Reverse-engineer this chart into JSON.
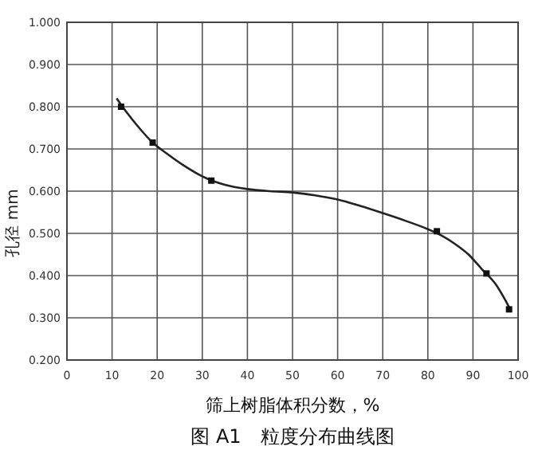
{
  "chart_data": {
    "type": "line",
    "title": "图 A1　粒度分布曲线图",
    "xlabel": "筛上树脂体积分数，%",
    "ylabel": "孔径 mm",
    "xlim": [
      0,
      100
    ],
    "xticks": [
      0,
      10,
      20,
      30,
      40,
      50,
      60,
      70,
      80,
      90,
      100
    ],
    "ylim": [
      0.2,
      1.0
    ],
    "yticks": [
      {
        "value": 0.2,
        "label": "0.200"
      },
      {
        "value": 0.3,
        "label": "0.300"
      },
      {
        "value": 0.4,
        "label": "0.400"
      },
      {
        "value": 0.5,
        "label": "0.500"
      },
      {
        "value": 0.6,
        "label": "0.600"
      },
      {
        "value": 0.7,
        "label": "0.700"
      },
      {
        "value": 0.8,
        "label": "0.800"
      },
      {
        "value": 0.9,
        "label": "0.900"
      },
      {
        "value": 1.0,
        "label": "1.000"
      }
    ],
    "grid": true,
    "series": [
      {
        "color": "#222222",
        "marker": "none",
        "x": [
          11,
          13,
          16,
          19,
          22,
          26,
          30,
          35,
          40,
          45,
          50,
          55,
          60,
          65,
          70,
          75,
          80,
          83,
          86,
          89,
          92,
          95,
          97,
          98.5
        ],
        "values": [
          0.82,
          0.79,
          0.75,
          0.715,
          0.69,
          0.66,
          0.635,
          0.615,
          0.605,
          0.6,
          0.597,
          0.59,
          0.58,
          0.565,
          0.548,
          0.53,
          0.51,
          0.495,
          0.475,
          0.45,
          0.415,
          0.38,
          0.345,
          0.315
        ]
      },
      {
        "type": "scatter",
        "color": "#111111",
        "marker": "square",
        "x": [
          12,
          19,
          32,
          82,
          93,
          98
        ],
        "values": [
          0.8,
          0.715,
          0.625,
          0.505,
          0.405,
          0.32
        ]
      }
    ]
  }
}
